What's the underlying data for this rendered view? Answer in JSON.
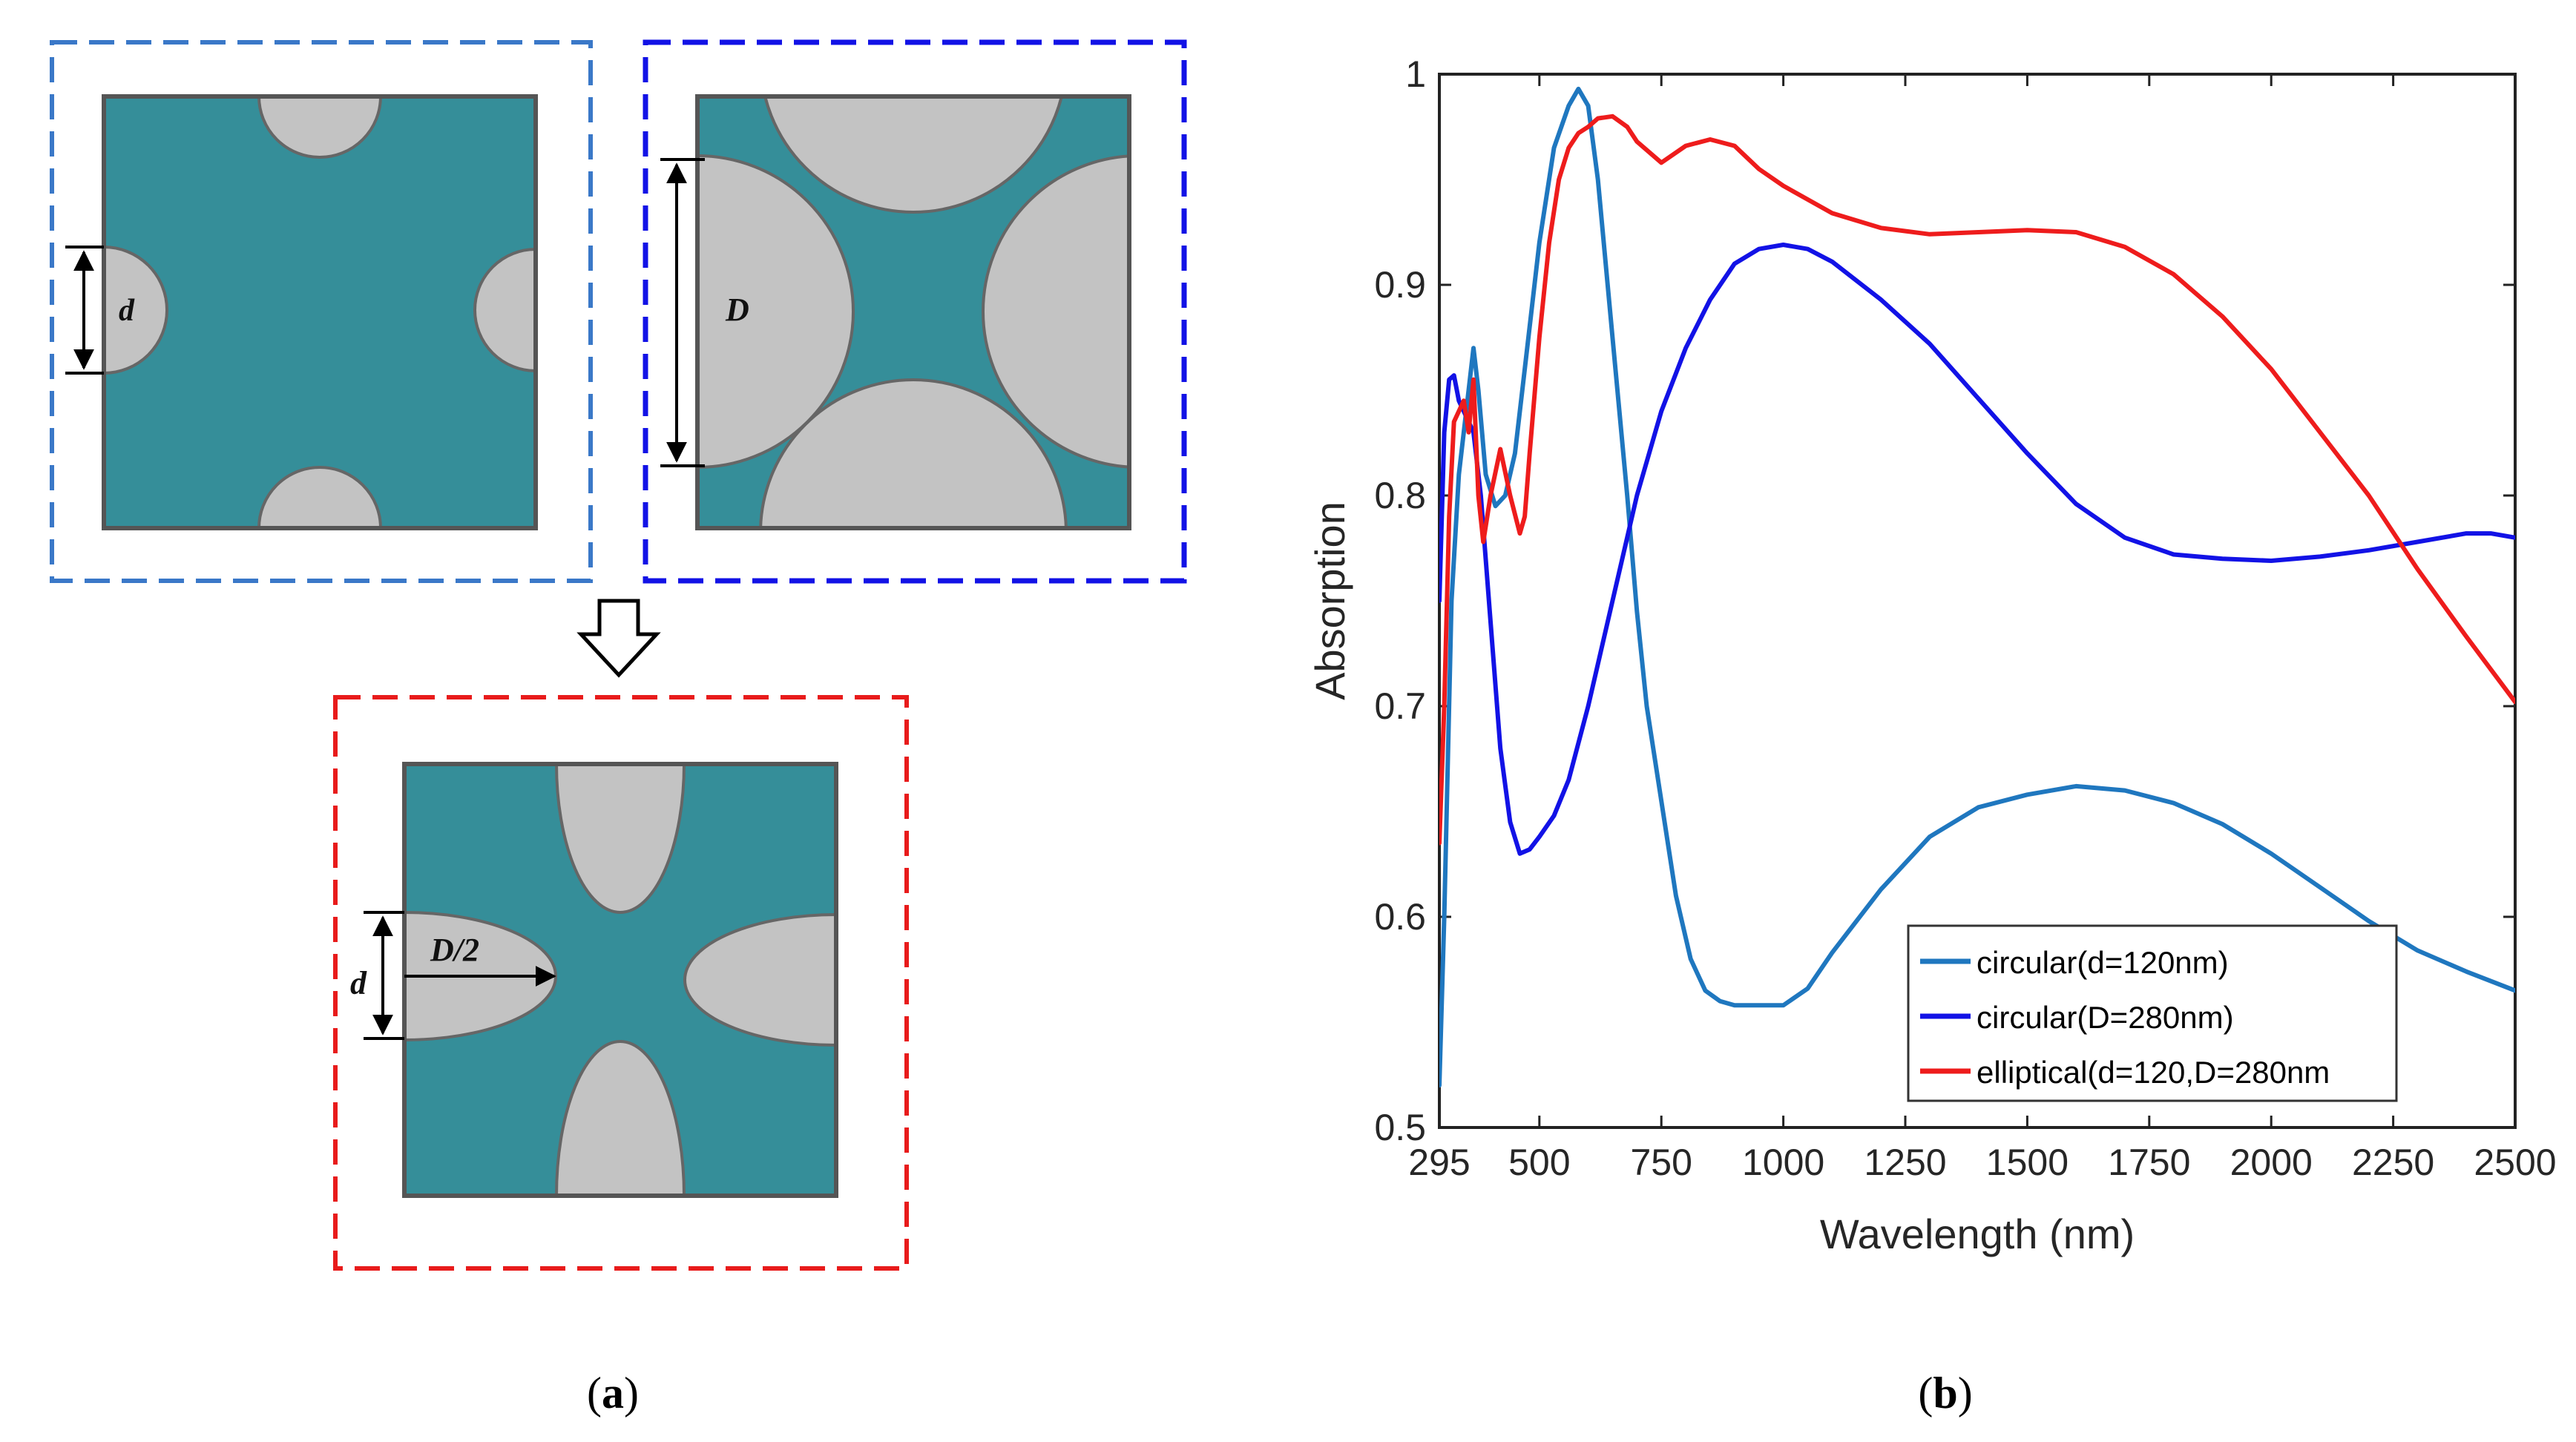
{
  "panel_a": {
    "caption": "(a)",
    "caption_letter": "a",
    "labels": {
      "d_small": "d",
      "D_large": "D",
      "d_ellipse": "d",
      "D_half": "D/2"
    },
    "colors": {
      "substrate": "#358e99",
      "hole": "#c3c3c3",
      "frame_small": "#3a78c8",
      "frame_large": "#1212e6",
      "frame_ellipse": "#e81b1b"
    }
  },
  "panel_b": {
    "caption": "(b)",
    "caption_letter": "b"
  },
  "chart_data": {
    "type": "line",
    "title": "",
    "xlabel": "Wavelength (nm)",
    "ylabel": "Absorption",
    "xlim": [
      295,
      2500
    ],
    "ylim": [
      0.5,
      1
    ],
    "xticks": [
      295,
      500,
      750,
      1000,
      1250,
      1500,
      1750,
      2000,
      2250,
      2500
    ],
    "yticks": [
      0.5,
      0.6,
      0.7,
      0.8,
      0.9,
      1
    ],
    "ytick_labels": [
      "0.5",
      "0.6",
      "0.7",
      "0.8",
      "0.9",
      "1"
    ],
    "grid": false,
    "legend_position": "bottom-right",
    "series": [
      {
        "name": "circular(d=120nm)",
        "color": "#1f77bf",
        "x": [
          295,
          305,
          320,
          335,
          350,
          365,
          375,
          390,
          410,
          430,
          450,
          470,
          500,
          530,
          560,
          580,
          600,
          620,
          650,
          680,
          700,
          720,
          750,
          780,
          810,
          840,
          870,
          900,
          950,
          1000,
          1050,
          1100,
          1200,
          1300,
          1400,
          1500,
          1600,
          1700,
          1800,
          1900,
          2000,
          2100,
          2200,
          2300,
          2400,
          2500
        ],
        "y": [
          0.52,
          0.6,
          0.75,
          0.81,
          0.84,
          0.87,
          0.85,
          0.81,
          0.795,
          0.8,
          0.82,
          0.86,
          0.92,
          0.965,
          0.985,
          0.993,
          0.985,
          0.95,
          0.875,
          0.8,
          0.745,
          0.7,
          0.655,
          0.61,
          0.58,
          0.565,
          0.56,
          0.558,
          0.558,
          0.558,
          0.566,
          0.583,
          0.613,
          0.638,
          0.652,
          0.658,
          0.662,
          0.66,
          0.654,
          0.644,
          0.63,
          0.614,
          0.598,
          0.584,
          0.574,
          0.565
        ]
      },
      {
        "name": "circular(D=280nm)",
        "color": "#1212e6",
        "x": [
          295,
          305,
          315,
          325,
          335,
          345,
          355,
          365,
          380,
          400,
          420,
          440,
          460,
          480,
          500,
          530,
          560,
          600,
          650,
          700,
          750,
          800,
          850,
          900,
          950,
          1000,
          1050,
          1100,
          1200,
          1300,
          1400,
          1500,
          1600,
          1700,
          1800,
          1900,
          2000,
          2100,
          2200,
          2300,
          2400,
          2450,
          2500
        ],
        "y": [
          0.75,
          0.83,
          0.855,
          0.857,
          0.845,
          0.84,
          0.835,
          0.83,
          0.8,
          0.74,
          0.68,
          0.645,
          0.63,
          0.632,
          0.638,
          0.648,
          0.665,
          0.7,
          0.75,
          0.8,
          0.84,
          0.87,
          0.893,
          0.91,
          0.917,
          0.919,
          0.917,
          0.911,
          0.893,
          0.872,
          0.846,
          0.82,
          0.796,
          0.78,
          0.772,
          0.77,
          0.769,
          0.771,
          0.774,
          0.778,
          0.782,
          0.782,
          0.78
        ]
      },
      {
        "name": "elliptical(d=120,D=280nm",
        "color": "#ee1c1c",
        "x": [
          295,
          305,
          315,
          325,
          335,
          345,
          355,
          365,
          375,
          385,
          400,
          420,
          440,
          460,
          470,
          480,
          500,
          520,
          540,
          560,
          580,
          600,
          620,
          650,
          680,
          700,
          750,
          800,
          850,
          900,
          950,
          1000,
          1100,
          1200,
          1300,
          1400,
          1500,
          1600,
          1700,
          1800,
          1900,
          2000,
          2100,
          2200,
          2300,
          2400,
          2500
        ],
        "y": [
          0.635,
          0.7,
          0.79,
          0.835,
          0.84,
          0.845,
          0.83,
          0.855,
          0.8,
          0.778,
          0.8,
          0.822,
          0.8,
          0.782,
          0.79,
          0.82,
          0.875,
          0.92,
          0.95,
          0.965,
          0.972,
          0.975,
          0.979,
          0.98,
          0.975,
          0.968,
          0.958,
          0.966,
          0.969,
          0.966,
          0.955,
          0.947,
          0.934,
          0.927,
          0.924,
          0.925,
          0.926,
          0.925,
          0.918,
          0.905,
          0.885,
          0.86,
          0.83,
          0.8,
          0.765,
          0.733,
          0.702
        ]
      }
    ]
  }
}
